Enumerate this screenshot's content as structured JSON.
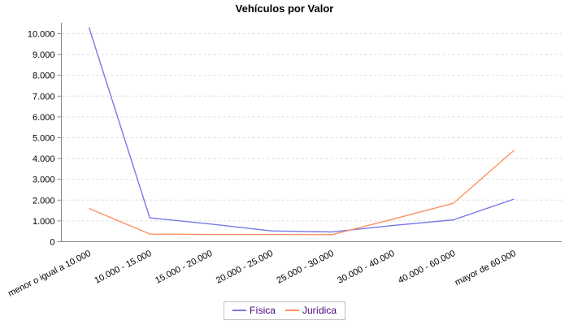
{
  "chart_data": {
    "type": "line",
    "title": "Vehículos por Valor",
    "categories": [
      "menor o igual a 10.000",
      "10.000 - 15.000",
      "15.000 - 20.000",
      "20.000 - 25.000",
      "25.000 - 30.000",
      "30.000 - 40.000",
      "40.000 - 60.000",
      "mayor de 60.000"
    ],
    "series": [
      {
        "name": "Física",
        "color": "#7878EA",
        "values": [
          10300,
          1150,
          850,
          520,
          470,
          780,
          1050,
          2050
        ]
      },
      {
        "name": "Jurídica",
        "color": "#FA9361",
        "values": [
          1600,
          370,
          350,
          350,
          340,
          1080,
          1850,
          4400
        ]
      }
    ],
    "y_ticks": [
      {
        "value": 0,
        "label": "0"
      },
      {
        "value": 1000,
        "label": "1.000"
      },
      {
        "value": 2000,
        "label": "2.000"
      },
      {
        "value": 3000,
        "label": "3.000"
      },
      {
        "value": 4000,
        "label": "4.000"
      },
      {
        "value": 5000,
        "label": "5.000"
      },
      {
        "value": 6000,
        "label": "6.000"
      },
      {
        "value": 7000,
        "label": "7.000"
      },
      {
        "value": 8000,
        "label": "8.000"
      },
      {
        "value": 9000,
        "label": "9.000"
      },
      {
        "value": 10000,
        "label": "10.000"
      }
    ],
    "ylim": [
      0,
      10500
    ],
    "xlabel": "",
    "ylabel": "",
    "grid": "horizontal-dashed",
    "legend_position": "bottom",
    "colors": {
      "grid": "#DCDCDC",
      "axis": "#888888",
      "tick_label": "#000000",
      "legend_text": "#4B0082",
      "legend_border": "#BFBFBF",
      "background": "#FFFFFF"
    }
  }
}
